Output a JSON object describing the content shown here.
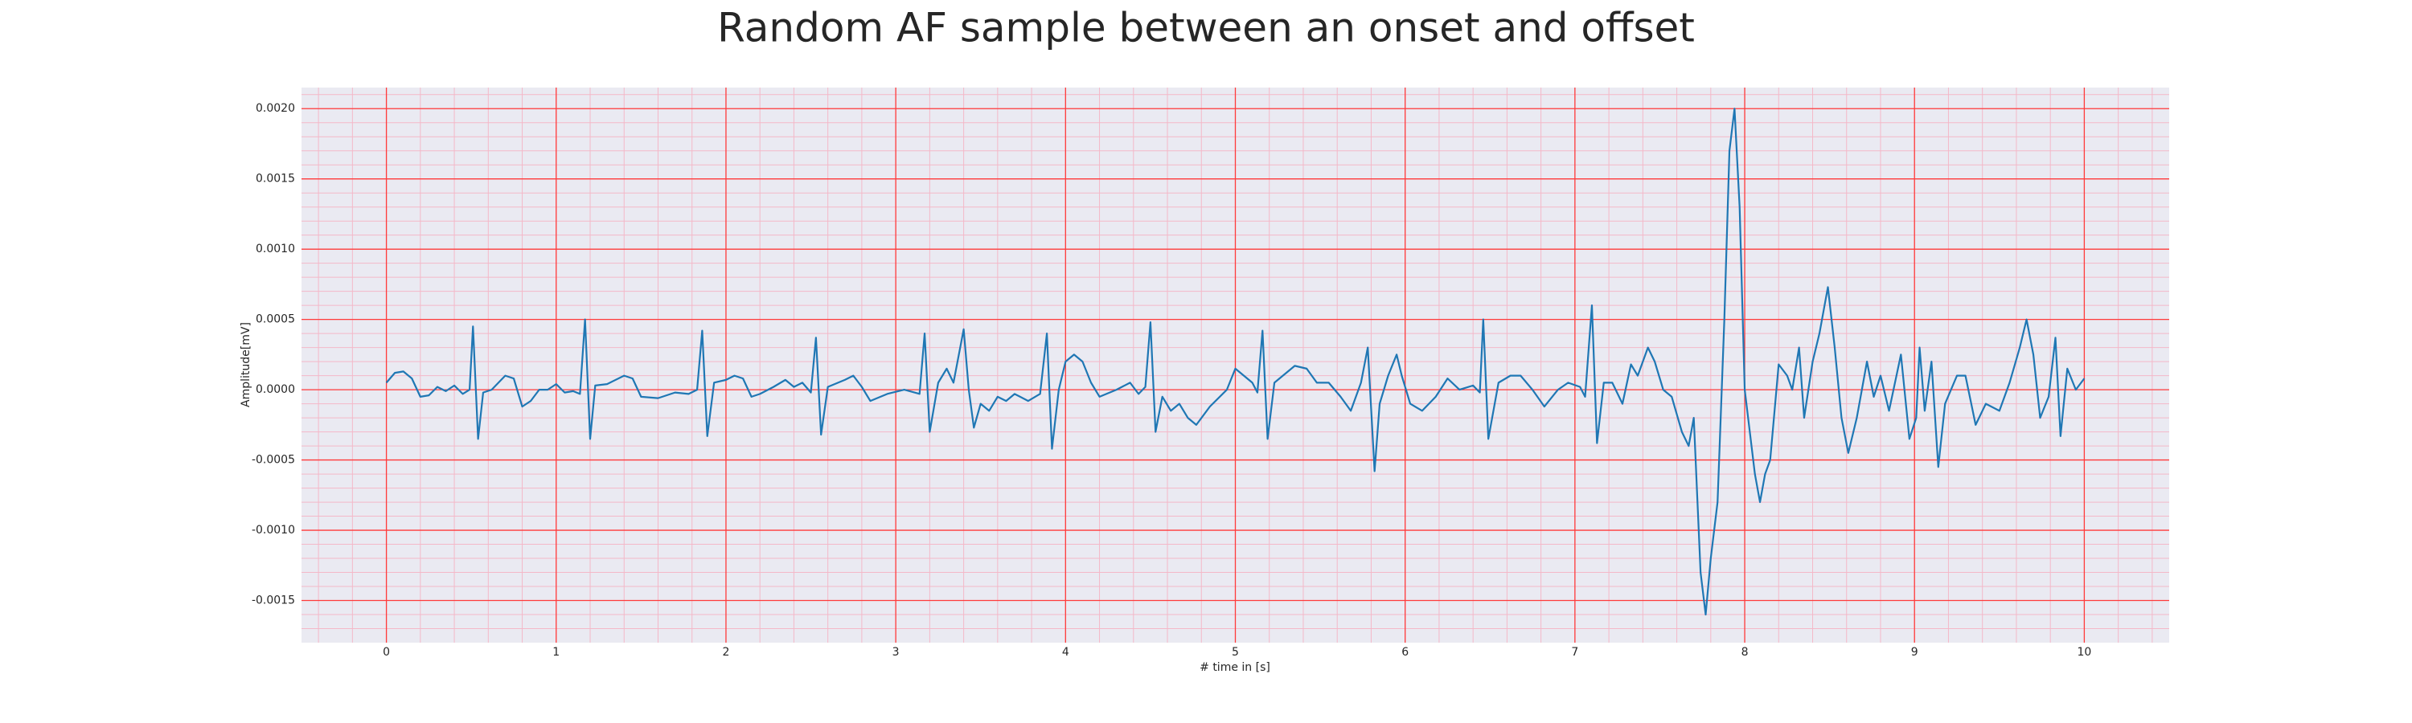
{
  "chart_data": {
    "type": "line",
    "title": "Random AF sample between an onset and offset",
    "xlabel": "# time in [s]",
    "ylabel": "Amplitude[mV]",
    "xlim": [
      -0.5,
      10.5
    ],
    "ylim": [
      -0.0018,
      0.00215
    ],
    "xticks": [
      0,
      1,
      2,
      3,
      4,
      5,
      6,
      7,
      8,
      9,
      10
    ],
    "yticks": [
      {
        "value": -0.0015,
        "label": "-0.0015"
      },
      {
        "value": -0.001,
        "label": "-0.0010"
      },
      {
        "value": -0.0005,
        "label": "-0.0005"
      },
      {
        "value": 0,
        "label": "0.0000"
      },
      {
        "value": 0.0005,
        "label": "0.0005"
      },
      {
        "value": 0.001,
        "label": "0.0010"
      },
      {
        "value": 0.0015,
        "label": "0.0015"
      },
      {
        "value": 0.002,
        "label": "0.0020"
      }
    ],
    "grid": true,
    "minor_grid": true,
    "grid_color": "#ff3b3b",
    "minor_grid_color": "#f4b8c8",
    "background": "#eaeaf2",
    "color": "#1f77b4",
    "x": [
      0.0,
      0.05,
      0.1,
      0.15,
      0.2,
      0.25,
      0.3,
      0.35,
      0.4,
      0.45,
      0.49,
      0.51,
      0.54,
      0.57,
      0.62,
      0.7,
      0.75,
      0.8,
      0.85,
      0.9,
      0.95,
      1.0,
      1.05,
      1.1,
      1.14,
      1.17,
      1.2,
      1.23,
      1.3,
      1.4,
      1.45,
      1.5,
      1.6,
      1.7,
      1.78,
      1.83,
      1.86,
      1.89,
      1.93,
      2.0,
      2.05,
      2.1,
      2.15,
      2.2,
      2.28,
      2.35,
      2.4,
      2.45,
      2.5,
      2.53,
      2.56,
      2.6,
      2.7,
      2.75,
      2.8,
      2.85,
      2.95,
      3.05,
      3.14,
      3.17,
      3.2,
      3.25,
      3.3,
      3.34,
      3.4,
      3.43,
      3.46,
      3.5,
      3.55,
      3.6,
      3.65,
      3.7,
      3.78,
      3.85,
      3.89,
      3.92,
      3.96,
      4.0,
      4.05,
      4.1,
      4.15,
      4.2,
      4.3,
      4.38,
      4.43,
      4.47,
      4.5,
      4.53,
      4.57,
      4.62,
      4.67,
      4.72,
      4.77,
      4.85,
      4.95,
      5.0,
      5.05,
      5.1,
      5.13,
      5.16,
      5.19,
      5.23,
      5.3,
      5.35,
      5.42,
      5.48,
      5.55,
      5.62,
      5.68,
      5.74,
      5.78,
      5.82,
      5.85,
      5.9,
      5.95,
      5.98,
      6.03,
      6.1,
      6.18,
      6.25,
      6.32,
      6.4,
      6.44,
      6.46,
      6.49,
      6.55,
      6.62,
      6.68,
      6.75,
      6.82,
      6.9,
      6.96,
      7.03,
      7.06,
      7.1,
      7.13,
      7.17,
      7.22,
      7.28,
      7.33,
      7.37,
      7.43,
      7.47,
      7.52,
      7.57,
      7.63,
      7.67,
      7.7,
      7.74,
      7.77,
      7.8,
      7.84,
      7.88,
      7.91,
      7.94,
      7.97,
      8.0,
      8.03,
      8.06,
      8.09,
      8.12,
      8.15,
      8.2,
      8.25,
      8.28,
      8.32,
      8.35,
      8.4,
      8.44,
      8.49,
      8.53,
      8.57,
      8.61,
      8.66,
      8.72,
      8.76,
      8.8,
      8.85,
      8.92,
      8.97,
      9.01,
      9.03,
      9.06,
      9.1,
      9.14,
      9.18,
      9.25,
      9.3,
      9.36,
      9.42,
      9.5,
      9.56,
      9.62,
      9.66,
      9.7,
      9.74,
      9.79,
      9.83,
      9.86,
      9.9,
      9.95,
      10.0
    ],
    "values": [
      5e-05,
      0.00012,
      0.00013,
      8e-05,
      -5e-05,
      -4e-05,
      2e-05,
      -1e-05,
      3e-05,
      -3e-05,
      0.0,
      0.00045,
      -0.00035,
      -2e-05,
      0.0,
      0.0001,
      8e-05,
      -0.00012,
      -8e-05,
      0.0,
      0.0,
      4e-05,
      -2e-05,
      -1e-05,
      -3e-05,
      0.0005,
      -0.00035,
      3e-05,
      4e-05,
      0.0001,
      8e-05,
      -5e-05,
      -6e-05,
      -2e-05,
      -3e-05,
      0.0,
      0.00042,
      -0.00033,
      5e-05,
      7e-05,
      0.0001,
      8e-05,
      -5e-05,
      -3e-05,
      2e-05,
      7e-05,
      2e-05,
      5e-05,
      -2e-05,
      0.00037,
      -0.00032,
      2e-05,
      7e-05,
      0.0001,
      2e-05,
      -8e-05,
      -3e-05,
      0.0,
      -3e-05,
      0.0004,
      -0.0003,
      5e-05,
      0.00015,
      5e-05,
      0.00043,
      0.0,
      -0.00027,
      -0.0001,
      -0.00015,
      -5e-05,
      -8e-05,
      -3e-05,
      -8e-05,
      -3e-05,
      0.0004,
      -0.00042,
      0.0,
      0.0002,
      0.00025,
      0.0002,
      5e-05,
      -5e-05,
      0.0,
      5e-05,
      -3e-05,
      2e-05,
      0.00048,
      -0.0003,
      -5e-05,
      -0.00015,
      -0.0001,
      -0.0002,
      -0.00025,
      -0.00012,
      0.0,
      0.00015,
      0.0001,
      5e-05,
      -2e-05,
      0.00042,
      -0.00035,
      5e-05,
      0.00012,
      0.00017,
      0.00015,
      5e-05,
      5e-05,
      -5e-05,
      -0.00015,
      5e-05,
      0.0003,
      -0.00058,
      -0.0001,
      0.0001,
      0.00025,
      0.0001,
      -0.0001,
      -0.00015,
      -5e-05,
      8e-05,
      0.0,
      3e-05,
      -2e-05,
      0.0005,
      -0.00035,
      5e-05,
      0.0001,
      0.0001,
      0.0,
      -0.00012,
      0.0,
      5e-05,
      2e-05,
      -5e-05,
      0.0006,
      -0.00038,
      5e-05,
      5e-05,
      -0.0001,
      0.00018,
      0.0001,
      0.0003,
      0.0002,
      0.0,
      -5e-05,
      -0.0003,
      -0.0004,
      -0.0002,
      -0.0013,
      -0.0016,
      -0.0012,
      -0.0008,
      0.0005,
      0.0017,
      0.002,
      0.0013,
      0.0,
      -0.0003,
      -0.0006,
      -0.0008,
      -0.0006,
      -0.0005,
      0.00018,
      0.0001,
      0.0,
      0.0003,
      -0.0002,
      0.0002,
      0.0004,
      0.00073,
      0.0003,
      -0.0002,
      -0.00045,
      -0.0002,
      0.0002,
      -5e-05,
      0.0001,
      -0.00015,
      0.00025,
      -0.00035,
      -0.0002,
      0.0003,
      -0.00015,
      0.0002,
      -0.00055,
      -0.0001,
      0.0001,
      0.0001,
      -0.00025,
      -0.0001,
      -0.00015,
      5e-05,
      0.0003,
      0.0005,
      0.00025,
      -0.0002,
      -5e-05,
      0.00037,
      -0.00033,
      0.00015,
      0.0,
      8e-05
    ]
  }
}
